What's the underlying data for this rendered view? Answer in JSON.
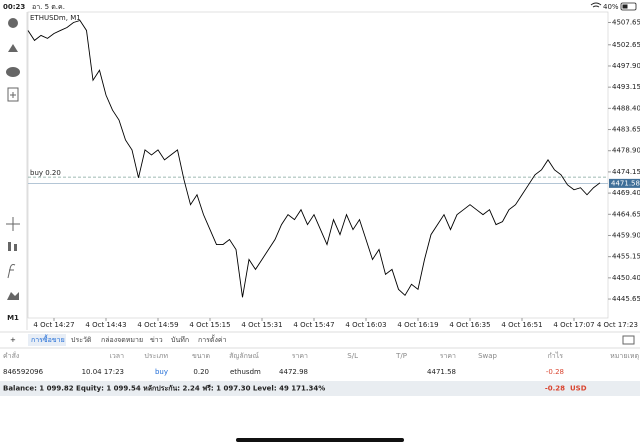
{
  "status_bar": {
    "time": "00:23",
    "date": "อา. 5 ต.ค.",
    "battery": "40%"
  },
  "toolbar": {
    "timeframe": "M1"
  },
  "chart_data": {
    "type": "line",
    "title": "ETHUSDm, M1",
    "color": "#000000",
    "grid": false,
    "categories": [
      null,
      null,
      null,
      null,
      "4 Oct 14:27",
      null,
      null,
      null,
      null,
      null,
      null,
      null,
      "4 Oct 14:43",
      null,
      null,
      null,
      null,
      null,
      null,
      null,
      "4 Oct 14:59",
      null,
      null,
      null,
      null,
      null,
      null,
      null,
      "4 Oct 15:15",
      null,
      null,
      null,
      null,
      null,
      null,
      null,
      "4 Oct 15:31",
      null,
      null,
      null,
      null,
      null,
      null,
      null,
      "4 Oct 15:47",
      null,
      null,
      null,
      null,
      null,
      null,
      null,
      "4 Oct 16:03",
      null,
      null,
      null,
      null,
      null,
      null,
      null,
      "4 Oct 16:19",
      null,
      null,
      null,
      null,
      null,
      null,
      null,
      "4 Oct 16:35",
      null,
      null,
      null,
      null,
      null,
      null,
      null,
      "4 Oct 16:51",
      null,
      null,
      null,
      null,
      null,
      null,
      null,
      "4 Oct 17:07",
      null,
      null,
      null,
      null
    ],
    "right_edge_label": "4 Oct 17:23",
    "values": [
      4505.86,
      4503.63,
      4504.75,
      4504.08,
      4505.19,
      4505.86,
      4506.53,
      4507.65,
      4508.1,
      4505.86,
      4494.7,
      4496.94,
      4491.36,
      4488.01,
      4485.78,
      4481.31,
      4479.08,
      4472.83,
      4479.08,
      4477.96,
      4479.08,
      4476.85,
      4477.96,
      4479.08,
      4472.38,
      4466.8,
      4469.03,
      4464.57,
      4461.22,
      4457.87,
      4457.87,
      4458.99,
      4456.76,
      4446.04,
      4454.52,
      4452.29,
      4454.52,
      4456.76,
      4458.99,
      4462.34,
      4464.57,
      4463.45,
      4465.68,
      4462.34,
      4464.57,
      4461.22,
      4457.87,
      4463.45,
      4460.1,
      4464.57,
      4461.22,
      4463.45,
      4458.99,
      4454.52,
      4456.76,
      4451.18,
      4452.29,
      4447.83,
      4446.49,
      4448.95,
      4447.83,
      4454.52,
      4460.1,
      4462.34,
      4464.57,
      4461.22,
      4464.57,
      4465.68,
      4466.8,
      4465.68,
      4464.57,
      4465.68,
      4462.34,
      4463.01,
      4465.68,
      4466.8,
      4469.03,
      4471.26,
      4473.5,
      4474.61,
      4476.85,
      4474.61,
      4473.5,
      4471.26,
      4470.15,
      4470.6,
      4469.03,
      4470.6,
      4471.71
    ],
    "ylim": [
      4441.4,
      4510.0
    ],
    "yticks": [
      4507.65,
      4502.65,
      {
        "value": 4497.9,
        "label": "4497.90"
      },
      4493.15,
      {
        "value": 4488.4,
        "label": "4488.40"
      },
      4483.65,
      {
        "value": 4478.9,
        "label": "4478.90"
      },
      4474.15,
      {
        "value": 4469.4,
        "label": "4469.40"
      },
      4464.65,
      {
        "value": 4459.9,
        "label": "4459.90"
      },
      4455.15,
      {
        "value": 4450.4,
        "label": "4450.40"
      },
      4445.65
    ],
    "buy_line": {
      "label": "buy 0.20",
      "value": 4472.98
    },
    "current_price": 4471.58
  },
  "tabs": [
    "การซื้อขาย",
    "ประวัติ",
    "กล่องจดหมาย",
    "ข่าว",
    "บันทึก",
    "การตั้งค่า"
  ],
  "table": {
    "header": [
      "คำสั่ง",
      "เวลา",
      "ประเภท",
      "ขนาด",
      "สัญลักษณ์",
      "ราคา",
      "S/L",
      "T/P",
      "ราคา",
      "Swap",
      "กำไร",
      "หมายเหตุ"
    ],
    "row": {
      "order": "846592096",
      "time": "10.04 17:23",
      "type": "buy",
      "volume": "0.20",
      "symbol": "ethusdm",
      "open_price": "4472.98",
      "price": "4471.58",
      "profit": "-0.28"
    }
  },
  "summary": {
    "text": "Balance: 1 099.82 Equity: 1 099.54 หลักประกัน: 2.24 ฟรี: 1 097.30 Level: 49 171.34%",
    "profit": "-0.28",
    "currency": "USD"
  }
}
